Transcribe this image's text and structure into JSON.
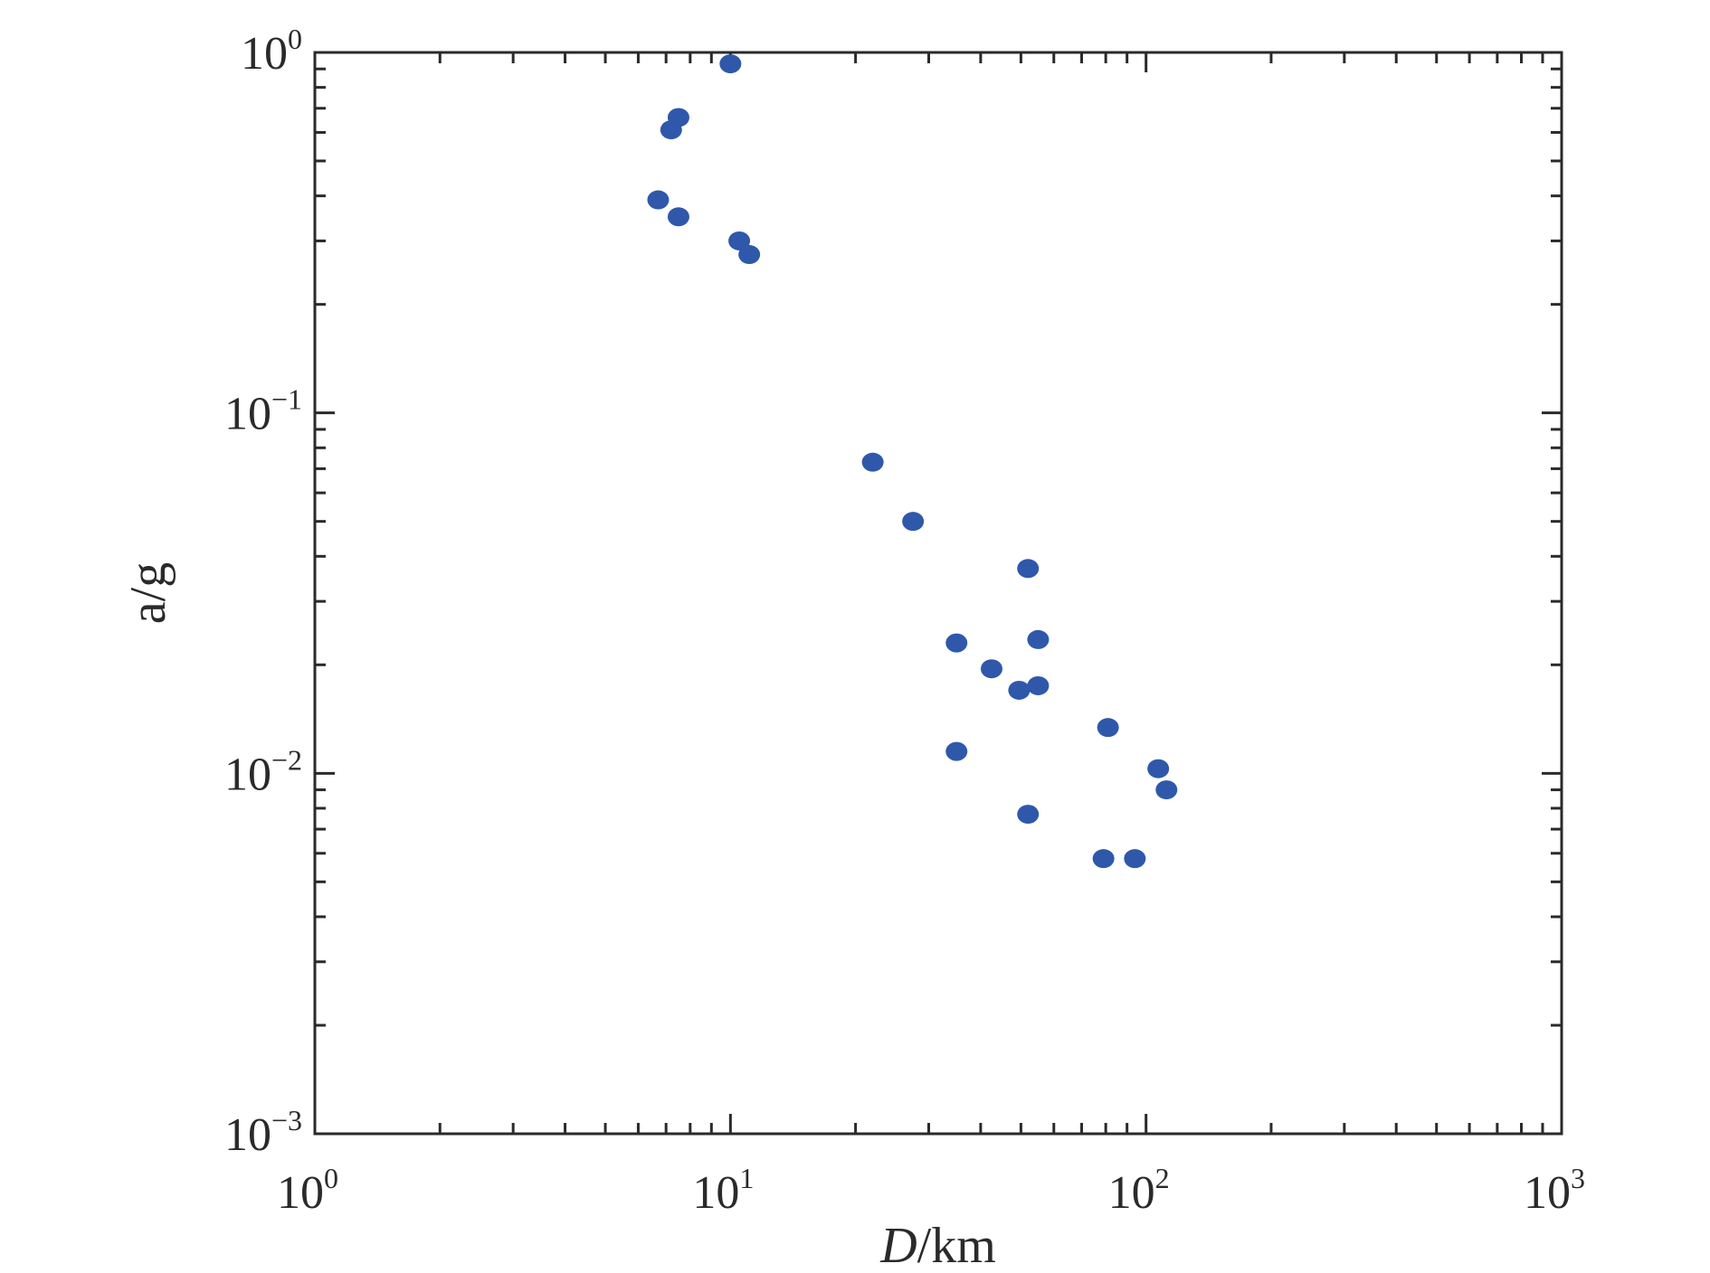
{
  "chart_data": {
    "type": "scatter",
    "title": "",
    "xlabel": "D/km",
    "ylabel": "a/g",
    "x_scale": "log",
    "y_scale": "log",
    "xlim": [
      1,
      1000
    ],
    "ylim": [
      0.001,
      1
    ],
    "grid": false,
    "marker_color": "#2f58ab",
    "x_ticks": [
      {
        "base": "10",
        "exp": "0",
        "value": 1
      },
      {
        "base": "10",
        "exp": "1",
        "value": 10
      },
      {
        "base": "10",
        "exp": "2",
        "value": 100
      },
      {
        "base": "10",
        "exp": "3",
        "value": 1000
      }
    ],
    "y_ticks": [
      {
        "base": "10",
        "exp": "0",
        "value": 1
      },
      {
        "base": "10",
        "exp": "−1",
        "value": 0.1
      },
      {
        "base": "10",
        "exp": "−2",
        "value": 0.01
      },
      {
        "base": "10",
        "exp": "−3",
        "value": 0.001
      }
    ],
    "points": [
      {
        "x": 10.0,
        "y": 0.93
      },
      {
        "x": 7.5,
        "y": 0.66
      },
      {
        "x": 7.2,
        "y": 0.61
      },
      {
        "x": 6.7,
        "y": 0.39
      },
      {
        "x": 7.5,
        "y": 0.35
      },
      {
        "x": 10.5,
        "y": 0.3
      },
      {
        "x": 11.1,
        "y": 0.275
      },
      {
        "x": 22.0,
        "y": 0.073
      },
      {
        "x": 27.5,
        "y": 0.05
      },
      {
        "x": 52.0,
        "y": 0.037
      },
      {
        "x": 35.0,
        "y": 0.023
      },
      {
        "x": 55.0,
        "y": 0.0235
      },
      {
        "x": 42.5,
        "y": 0.0195
      },
      {
        "x": 49.5,
        "y": 0.017
      },
      {
        "x": 55.0,
        "y": 0.0175
      },
      {
        "x": 81.0,
        "y": 0.0134
      },
      {
        "x": 35.0,
        "y": 0.0115
      },
      {
        "x": 107.0,
        "y": 0.0103
      },
      {
        "x": 112.0,
        "y": 0.009
      },
      {
        "x": 52.0,
        "y": 0.0077
      },
      {
        "x": 79.0,
        "y": 0.0058
      },
      {
        "x": 94.0,
        "y": 0.0058
      }
    ]
  }
}
